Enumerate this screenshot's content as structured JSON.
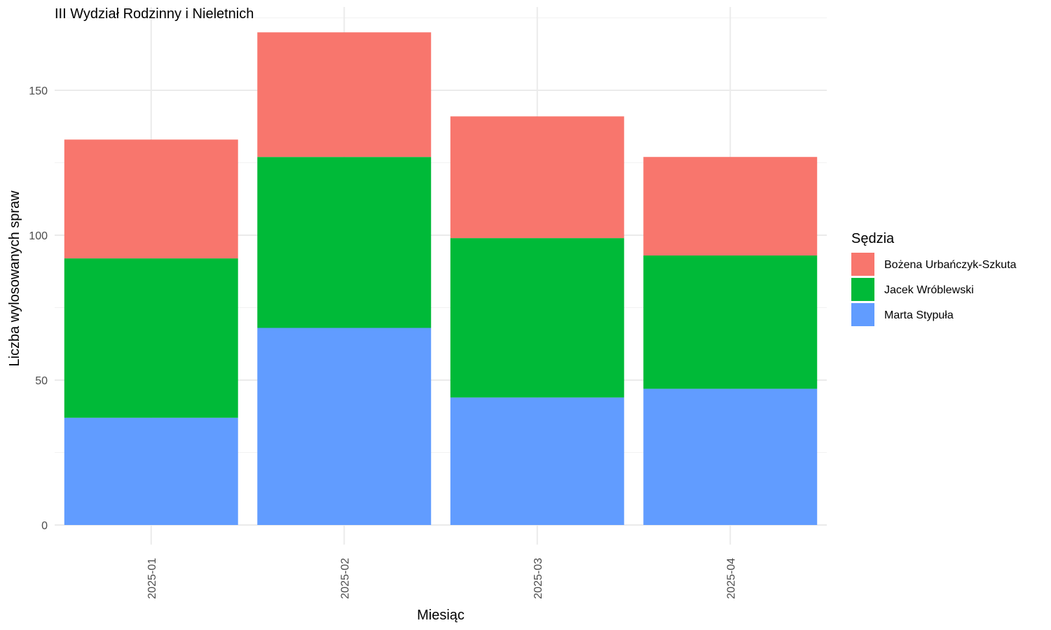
{
  "chart_data": {
    "type": "bar",
    "stacked": true,
    "title": "III Wydział Rodzinny i Nieletnich",
    "xlabel": "Miesiąc",
    "ylabel": "Liczba wylosowanych spraw",
    "categories": [
      "2025-01",
      "2025-02",
      "2025-03",
      "2025-04"
    ],
    "ylim": [
      0,
      178
    ],
    "yticks": [
      0,
      50,
      100,
      150
    ],
    "grid": true,
    "legend": {
      "title": "Sędzia",
      "position": "right"
    },
    "series": [
      {
        "name": "Marta Stypuła",
        "color": "#619CFF",
        "values": [
          37,
          68,
          44,
          47
        ]
      },
      {
        "name": "Jacek Wróblewski",
        "color": "#00BA38",
        "values": [
          55,
          59,
          55,
          46
        ]
      },
      {
        "name": "Bożena Urbańczyk-Szkuta",
        "color": "#F8766D",
        "values": [
          41,
          43,
          42,
          34
        ]
      }
    ]
  }
}
